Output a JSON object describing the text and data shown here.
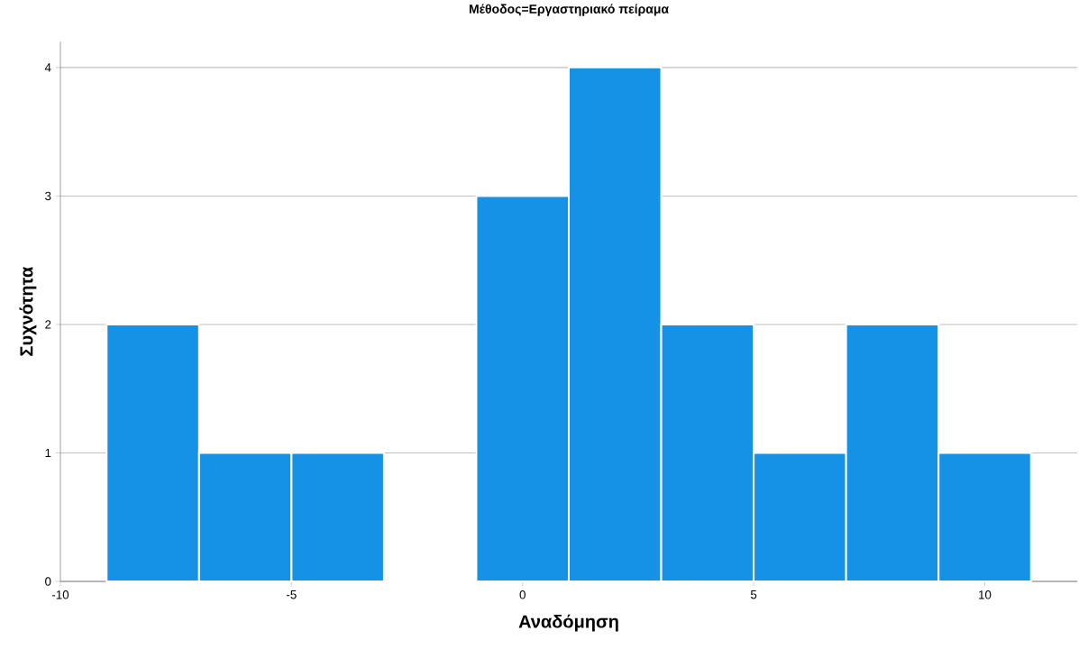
{
  "chart_data": {
    "type": "histogram",
    "title": "Μέθοδος=Εργαστηριακό πείραμα",
    "xlabel": "Αναδόμηση",
    "ylabel": "Συχνότητα",
    "bins": [
      -9,
      -7,
      -5,
      -3,
      -1,
      1,
      3,
      5,
      7,
      9,
      11
    ],
    "values": [
      2,
      1,
      1,
      0,
      3,
      4,
      2,
      1,
      2,
      1
    ],
    "color": "#1591e6",
    "xlim": [
      -10,
      12
    ],
    "ylim": [
      0,
      4.2
    ],
    "xticks": [
      -10,
      -5,
      0,
      5,
      10
    ],
    "yticks": [
      0,
      1,
      2,
      3,
      4
    ],
    "grid": "y"
  }
}
